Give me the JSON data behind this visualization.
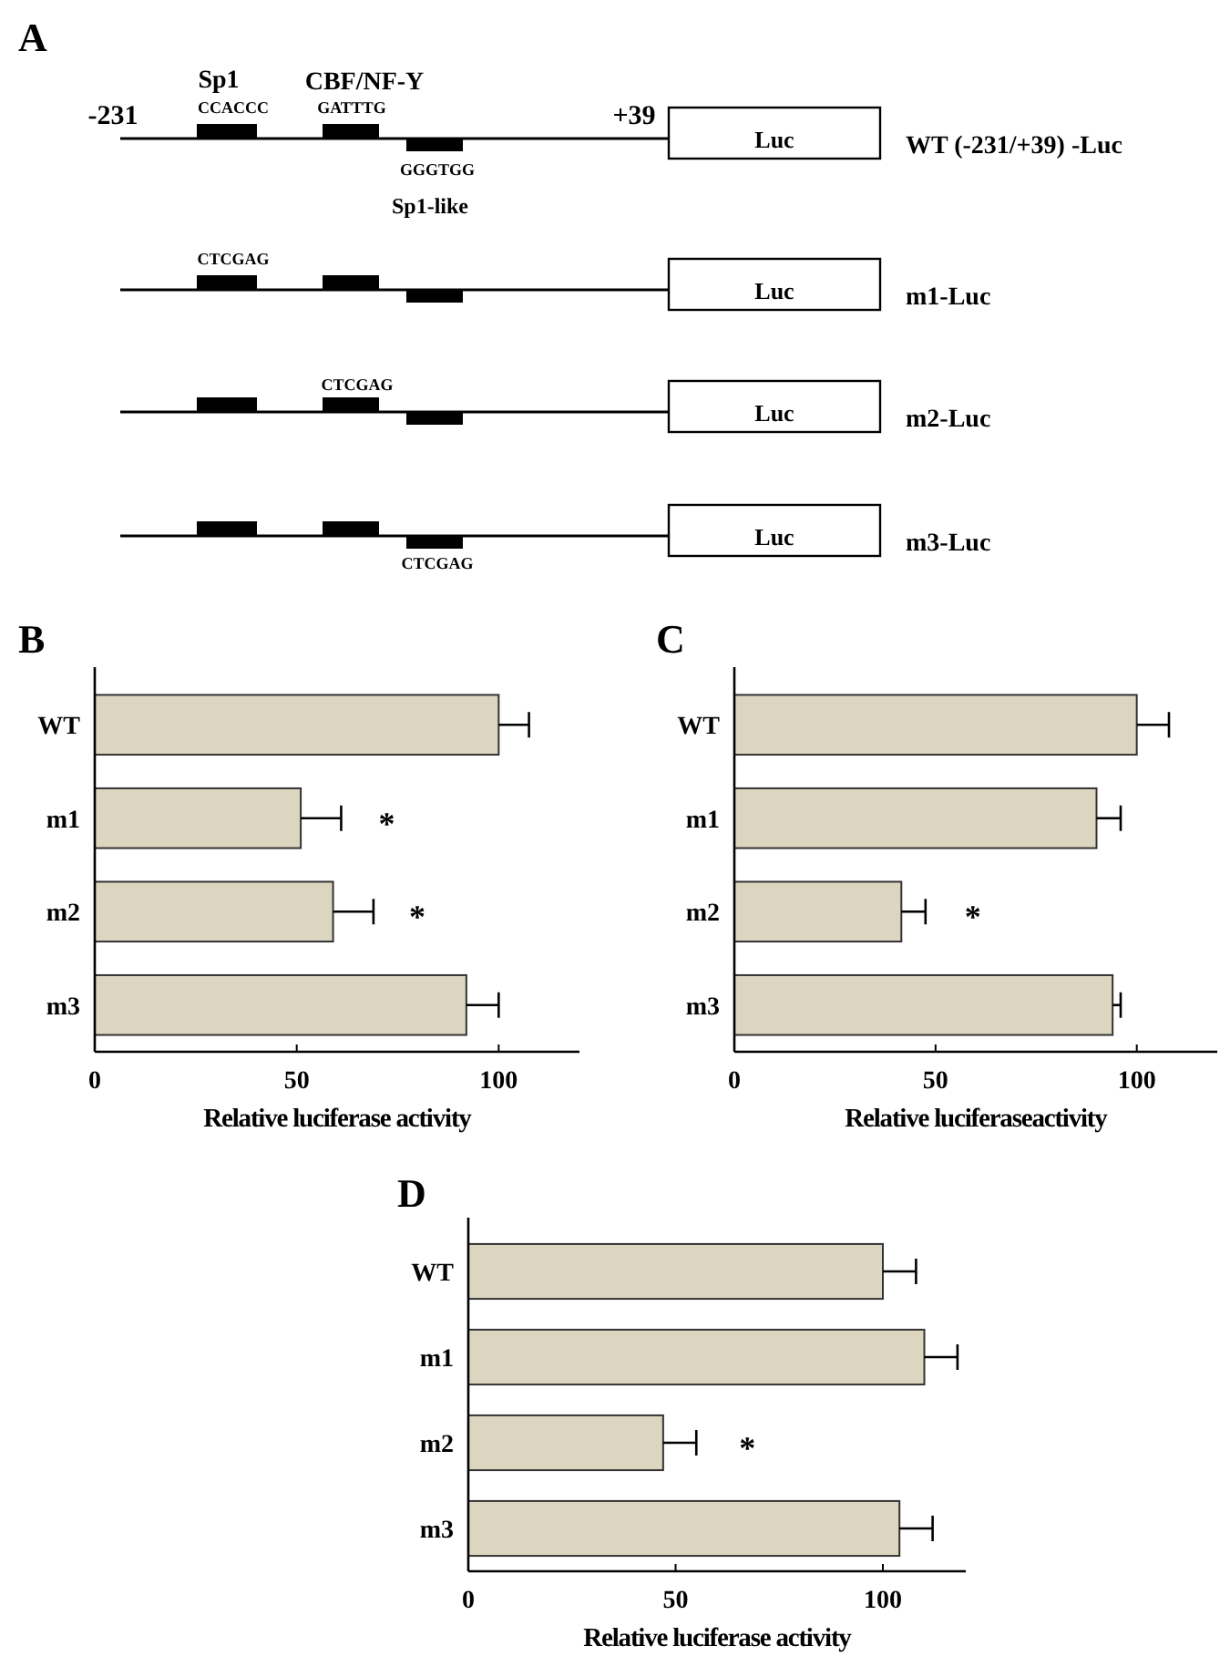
{
  "chart_data": [
    {
      "type": "other",
      "title": "A",
      "annotations": [
        "-231",
        "Sp1",
        "CCACCC",
        "CBF/NF-Y",
        "GATTTG",
        "+39",
        "GGGTGG",
        "Sp1-like",
        "WT (-231/+39) -Luc",
        "CTCGAG",
        "m1-Luc",
        "CTCGAG",
        "m2-Luc",
        "CTCGAG",
        "m3-Luc",
        "Luc",
        "Luc",
        "Luc",
        "Luc"
      ]
    },
    {
      "type": "bar",
      "orientation": "horizontal",
      "title": "B",
      "xlabel": "Relative luciferase activity",
      "categories": [
        "WT",
        "m1",
        "m2",
        "m3"
      ],
      "values": [
        100,
        51,
        59,
        92
      ],
      "errors": [
        7.5,
        10,
        10,
        8
      ],
      "color": "#dcd6c0",
      "xlim": [
        0,
        120
      ],
      "xticks": [
        0,
        50,
        100
      ],
      "annotations": [
        "*",
        "*"
      ]
    },
    {
      "type": "bar",
      "orientation": "horizontal",
      "title": "C",
      "xlabel": "Relative luciferaseactivity",
      "categories": [
        "WT",
        "m1",
        "m2",
        "m3"
      ],
      "values": [
        100,
        90,
        41.5,
        94
      ],
      "errors": [
        8,
        6,
        6,
        2
      ],
      "color": "#dcd6c0",
      "xlim": [
        0,
        120
      ],
      "xticks": [
        0,
        50,
        100
      ],
      "annotations": [
        "*"
      ]
    },
    {
      "type": "bar",
      "orientation": "horizontal",
      "title": "D",
      "xlabel": "Relative luciferase activity",
      "categories": [
        "WT",
        "m1",
        "m2",
        "m3"
      ],
      "values": [
        100,
        110,
        47,
        104
      ],
      "errors": [
        8,
        8,
        8,
        8
      ],
      "color": "#dcd6c0",
      "xlim": [
        0,
        120
      ],
      "xticks": [
        0,
        50,
        100
      ],
      "annotations": [
        "*"
      ]
    }
  ]
}
